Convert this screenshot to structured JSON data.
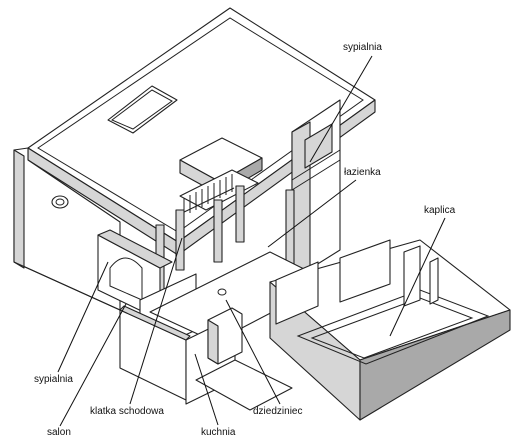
{
  "labels": {
    "sypialnia_top": "sypialnia",
    "lazienka": "łazienka",
    "kaplica": "kaplica",
    "sypialnia_left": "sypialnia",
    "salon": "salon",
    "klatka_schodowa": "klatka schodowa",
    "kuchnia": "kuchnia",
    "dziedziniec": "dziedziniec"
  }
}
